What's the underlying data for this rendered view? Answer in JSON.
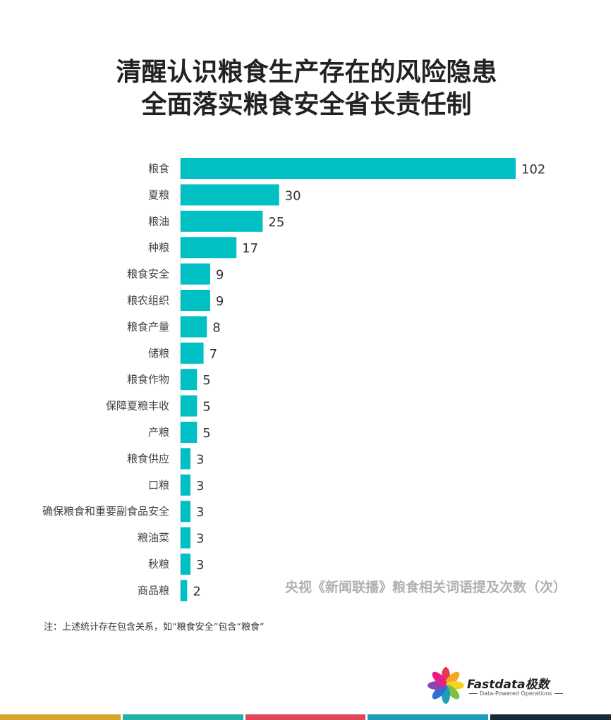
{
  "header": {
    "title_line1": "清醒认识粮食生产存在的风险隐患",
    "title_line2": "全面落实粮食安全省长责任制"
  },
  "chart_data": {
    "type": "bar",
    "orientation": "horizontal",
    "title": "央视《新闻联播》粮食相关词语提及次数（次）",
    "categories": [
      "粮食",
      "夏粮",
      "粮油",
      "种粮",
      "粮食安全",
      "粮农组织",
      "粮食产量",
      "储粮",
      "粮食作物",
      "保障夏粮丰收",
      "产粮",
      "粮食供应",
      "口粮",
      "确保粮食和重要副食品安全",
      "粮油菜",
      "秋粮",
      "商品粮"
    ],
    "values": [
      102,
      30,
      25,
      17,
      9,
      9,
      8,
      7,
      5,
      5,
      5,
      3,
      3,
      3,
      3,
      3,
      2
    ],
    "bar_color": "#00c0c4",
    "xlim": [
      0,
      102
    ],
    "grid": false,
    "legend": "none"
  },
  "footer": {
    "note": "注：上述统计存在包含关系，如“粮食安全”包含“粮食”",
    "brand": "Fastdata极数",
    "tagline": "Data-Powered Operations",
    "stripe_colors": [
      "#d4a72c",
      "#20b2a6",
      "#e0485a",
      "#1ba0b8",
      "#17293b"
    ]
  }
}
